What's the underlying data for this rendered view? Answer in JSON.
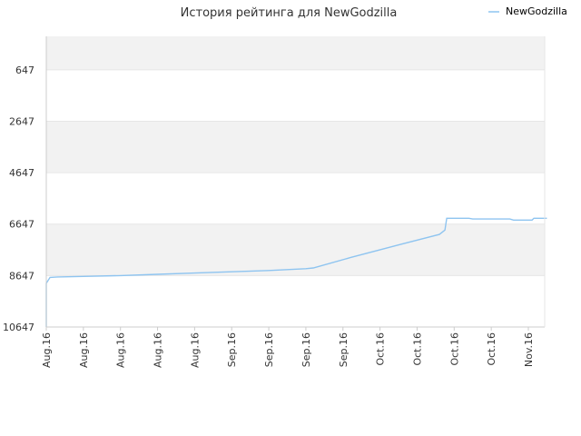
{
  "chart_data": {
    "type": "line",
    "title": "История рейтинга для NewGodzilla",
    "xlabel": "",
    "ylabel": "",
    "y_axis_inverted": true,
    "ylim": [
      10647,
      0
    ],
    "yticks": [
      647,
      2647,
      4647,
      6647,
      8647,
      10647
    ],
    "xticks": [
      "Aug.16",
      "Aug.16",
      "Aug.16",
      "Aug.16",
      "Aug.16",
      "Sep.16",
      "Sep.16",
      "Sep.16",
      "Sep.16",
      "Oct.16",
      "Oct.16",
      "Oct.16",
      "Oct.16",
      "Nov.16"
    ],
    "grid": "horizontal bands",
    "legend_position": "top-right",
    "colors": {
      "series": "#8ec4f0",
      "band": "#f2f2f2",
      "grid": "#e6e6e6",
      "axis": "#cccccc"
    },
    "series": [
      {
        "name": "NewGodzilla",
        "points": [
          [
            0.0,
            10647
          ],
          [
            0.0,
            8950
          ],
          [
            0.1,
            8720
          ],
          [
            0.3,
            8700
          ],
          [
            1.0,
            8680
          ],
          [
            2.0,
            8650
          ],
          [
            3.0,
            8600
          ],
          [
            4.0,
            8550
          ],
          [
            5.0,
            8500
          ],
          [
            6.0,
            8450
          ],
          [
            7.0,
            8380
          ],
          [
            7.2,
            8350
          ],
          [
            8.2,
            7950
          ],
          [
            9.6,
            7420
          ],
          [
            10.6,
            7050
          ],
          [
            10.75,
            6880
          ],
          [
            10.8,
            6420
          ],
          [
            11.4,
            6420
          ],
          [
            11.5,
            6450
          ],
          [
            12.5,
            6450
          ],
          [
            12.6,
            6490
          ],
          [
            13.1,
            6490
          ],
          [
            13.15,
            6420
          ],
          [
            13.5,
            6420
          ]
        ]
      }
    ]
  }
}
